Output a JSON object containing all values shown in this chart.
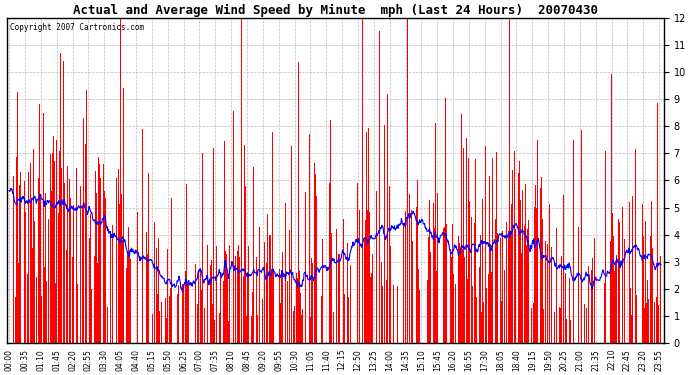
{
  "title": "Actual and Average Wind Speed by Minute  mph (Last 24 Hours)  20070430",
  "copyright_text": "Copyright 2007 Cartronics.com",
  "ylim": [
    0.0,
    12.0
  ],
  "yticks": [
    0.0,
    1.0,
    2.0,
    3.0,
    4.0,
    5.0,
    6.0,
    7.0,
    8.0,
    9.0,
    10.0,
    11.0,
    12.0
  ],
  "bar_color": "#FF0000",
  "line_color": "#0000FF",
  "background_color": "#FFFFFF",
  "grid_color": "#AAAAAA",
  "n_minutes": 1440,
  "seed": 42,
  "x_tick_labels": [
    "00:00",
    "00:35",
    "01:10",
    "01:45",
    "02:20",
    "02:55",
    "03:30",
    "04:05",
    "04:40",
    "05:15",
    "05:50",
    "06:25",
    "07:00",
    "07:35",
    "08:10",
    "08:45",
    "09:20",
    "09:55",
    "10:30",
    "11:05",
    "11:40",
    "12:15",
    "12:50",
    "13:25",
    "14:00",
    "14:35",
    "15:10",
    "15:45",
    "16:20",
    "16:55",
    "17:30",
    "18:05",
    "18:40",
    "19:15",
    "19:50",
    "20:25",
    "21:00",
    "21:35",
    "22:10",
    "22:45",
    "23:20",
    "23:55"
  ],
  "x_tick_positions": [
    0,
    35,
    70,
    105,
    140,
    175,
    210,
    245,
    280,
    315,
    350,
    385,
    420,
    455,
    490,
    525,
    560,
    595,
    630,
    665,
    700,
    735,
    770,
    805,
    840,
    875,
    910,
    945,
    980,
    1015,
    1050,
    1085,
    1120,
    1155,
    1190,
    1225,
    1260,
    1295,
    1330,
    1365,
    1400,
    1435
  ],
  "figwidth": 6.9,
  "figheight": 3.75,
  "dpi": 100
}
